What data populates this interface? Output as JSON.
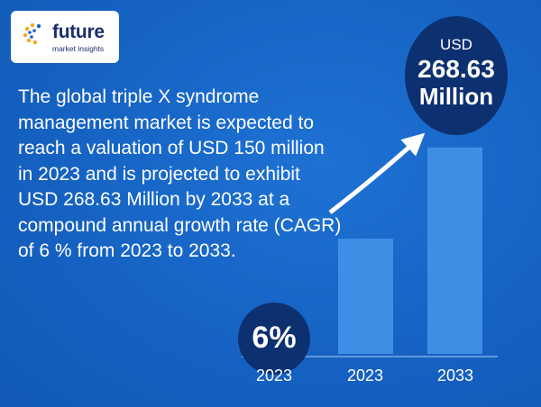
{
  "logo": {
    "brand": "future",
    "tagline": "market insights"
  },
  "headline": "The global triple X syndrome management market is expected to reach a valuation of USD 150 million in 2023 and is projected to exhibit USD 268.63 Million by 2033 at a compound annual growth rate (CAGR) of 6 % from 2023 to 2033.",
  "cagr_badge": "6%",
  "value_badge": {
    "currency": "USD",
    "amount": "268.63",
    "unit": "Million"
  },
  "colors": {
    "background": "#1765c6",
    "bar": "#3e8ee6",
    "badge": "#0d3070",
    "text": "#ffffff"
  },
  "chart_data": {
    "type": "bar",
    "categories": [
      "2023",
      "2023",
      "2033"
    ],
    "values": [
      null,
      150,
      268.63
    ],
    "ylim": [
      0,
      300
    ],
    "grid": false,
    "legend": "none",
    "annotations": [
      "6%",
      "USD 268.63 Million"
    ]
  }
}
